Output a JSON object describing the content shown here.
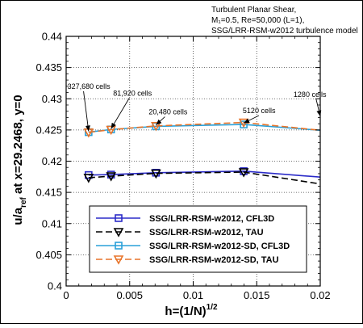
{
  "chart_data": {
    "type": "line",
    "title_lines": [
      "Turbulent Planar Shear,",
      "M₁=0.5, Re=50,000 (L=1),",
      "SSG/LRR-RSM-w2012 turbulence model"
    ],
    "xlabel_main": "h=(1/N)",
    "xlabel_sup": "1/2",
    "ylabel_main": "u/a",
    "ylabel_sub": "ref",
    "ylabel_rest": " at x=29.2468, y=0",
    "xlim": [
      0,
      0.02
    ],
    "ylim": [
      0.4,
      0.44
    ],
    "xticks": [
      0,
      0.005,
      0.01,
      0.015,
      0.02
    ],
    "xtick_labels": [
      "0",
      "0.005",
      "0.01",
      "0.015",
      "0.02"
    ],
    "yticks": [
      0.4,
      0.405,
      0.41,
      0.415,
      0.42,
      0.425,
      0.43,
      0.435,
      0.44
    ],
    "ytick_labels": [
      "0.4",
      "0.405",
      "0.41",
      "0.415",
      "0.42",
      "0.425",
      "0.43",
      "0.435",
      "0.44"
    ],
    "grid": true,
    "legend_position": "lower-center",
    "series": [
      {
        "name": "SSG/LRR-RSM-w2012, CFL3D",
        "color": "#2b2bc8",
        "marker": "square",
        "dash": "solid",
        "x": [
          0.0017678,
          0.0035355,
          0.0070711,
          0.0139754
        ],
        "y": [
          0.41778,
          0.41785,
          0.41815,
          0.4184
        ],
        "line_x": [
          0.0017678,
          0.0035355,
          0.0070711,
          0.0139754,
          0.02
        ],
        "line_y": [
          0.41778,
          0.41785,
          0.41815,
          0.4184,
          0.41745
        ]
      },
      {
        "name": "SSG/LRR-RSM-w2012, TAU",
        "color": "#000000",
        "marker": "triangle-down",
        "dash": "dashed",
        "x": [
          0.0017678,
          0.0035355,
          0.0070711,
          0.0139754
        ],
        "y": [
          0.41735,
          0.4176,
          0.41805,
          0.41825
        ],
        "line_x": [
          0.0017678,
          0.0035355,
          0.0070711,
          0.0139754,
          0.02
        ],
        "line_y": [
          0.41735,
          0.4176,
          0.41805,
          0.41825,
          0.41635
        ]
      },
      {
        "name": "SSG/LRR-RSM-w2012-SD, CFL3D",
        "color": "#2aa0d8",
        "marker": "square",
        "dash": "solid",
        "x": [
          0.0017678,
          0.0035355,
          0.0070711,
          0.0139754
        ],
        "y": [
          0.42465,
          0.42508,
          0.42558,
          0.42588
        ],
        "line_x": [
          0.0017678,
          0.0035355,
          0.0070711,
          0.0139754,
          0.02
        ],
        "line_y": [
          0.42465,
          0.42508,
          0.42558,
          0.42588,
          0.42495
        ]
      },
      {
        "name": "SSG/LRR-RSM-w2012-SD, TAU",
        "color": "#e8742a",
        "marker": "triangle-down",
        "dash": "dashed",
        "x": [
          0.0017678,
          0.0035355,
          0.0070711,
          0.0139754
        ],
        "y": [
          0.42462,
          0.42505,
          0.42565,
          0.4262
        ],
        "line_x": [
          0.0017678,
          0.0035355,
          0.0070711,
          0.0139754,
          0.02
        ],
        "line_y": [
          0.42462,
          0.42505,
          0.42565,
          0.4262,
          0.42495
        ]
      }
    ],
    "annotations": [
      {
        "text": "327,680 cells",
        "target_x": 0.0017678,
        "target_y": 0.4248,
        "label_x": 0.0001,
        "label_y": 0.4316
      },
      {
        "text": "81,920 cells",
        "target_x": 0.0035355,
        "target_y": 0.4252,
        "label_x": 0.0037,
        "label_y": 0.4305
      },
      {
        "text": "20,480 cells",
        "target_x": 0.0070711,
        "target_y": 0.4258,
        "label_x": 0.0065,
        "label_y": 0.4275
      },
      {
        "text": "5120 cells",
        "target_x": 0.0139754,
        "target_y": 0.4261,
        "label_x": 0.0139,
        "label_y": 0.4277
      },
      {
        "text": "1280 cells",
        "target_x": 0.02,
        "target_y": 0.4272,
        "label_x": 0.0179,
        "label_y": 0.4303
      }
    ]
  }
}
